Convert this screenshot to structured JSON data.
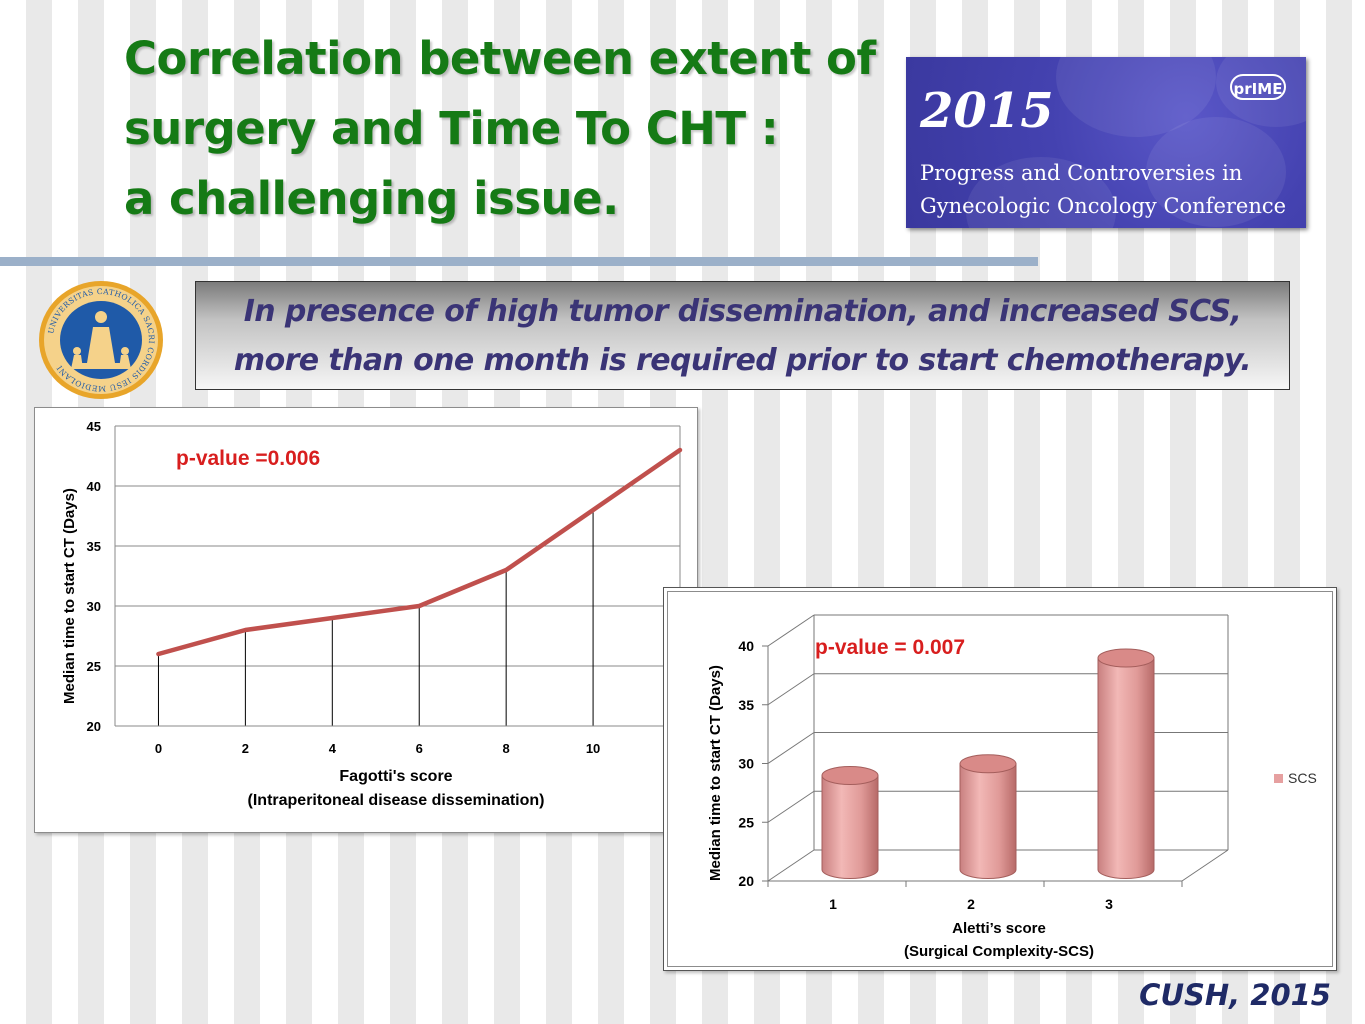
{
  "slide": {
    "title_lines": [
      "Correlation between extent of",
      "surgery and Time To CHT :",
      "a challenging issue."
    ],
    "banner_lines": [
      "In presence of high tumor dissemination, and increased SCS,",
      "more than one month is required prior to start chemotherapy."
    ],
    "source": "CUSH, 2015"
  },
  "conference_logo": {
    "brand": "prIME",
    "year": "2015",
    "name_lines": [
      "Progress and Controversies in",
      "Gynecologic Oncology Conference"
    ]
  },
  "university_seal": {
    "icon": "university-seal-icon",
    "text": "UNIVERSITAS CATHOLICA SACRI CORDIS IESU MEDIOLANI",
    "colors": {
      "ring": "#e8a52a",
      "field": "#1f5aa8"
    }
  },
  "colors": {
    "title": "#157a15",
    "banner_text": "#3a3476",
    "line": "#c0504d",
    "bar": "#e6a0a0",
    "annotation": "#d81e1e",
    "source": "#1f2a66"
  },
  "chart_data": [
    {
      "type": "line",
      "x": [
        0,
        2,
        4,
        6,
        8,
        10,
        12
      ],
      "series": [
        {
          "values": [
            26,
            28,
            29,
            30,
            33,
            38,
            43
          ]
        }
      ],
      "xlabel": "Fagotti's score",
      "xlabel2": "(Intraperitoneal disease dissemination)",
      "ylabel": "Median time to start CT (Days)",
      "yticks": [
        20,
        25,
        30,
        35,
        40,
        45
      ],
      "ylim": [
        20,
        45
      ],
      "grid": "horizontal",
      "drop_lines": true,
      "annotation": "p-value =0.006"
    },
    {
      "type": "bar",
      "style": "3d-cylinder",
      "categories": [
        "1",
        "2",
        "3"
      ],
      "series": [
        {
          "name": "SCS",
          "values": [
            28,
            29,
            38
          ]
        }
      ],
      "xlabel": "Aletti’s score",
      "xlabel2": "(Surgical Complexity-SCS)",
      "ylabel": "Median time to start CT (Days)",
      "yticks": [
        20,
        25,
        30,
        35,
        40
      ],
      "ylim": [
        20,
        40
      ],
      "grid": "horizontal",
      "legend": "right",
      "annotation": "p-value = 0.007"
    }
  ]
}
